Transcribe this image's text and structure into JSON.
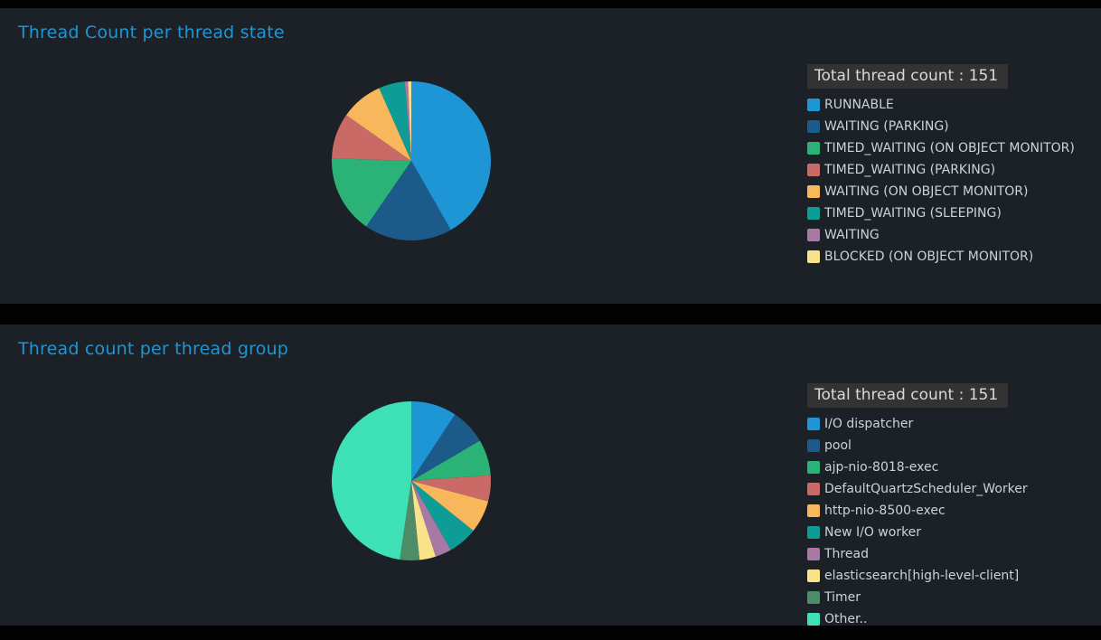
{
  "page": {
    "background": "#020202",
    "panel_background": "#1b2126",
    "title_color": "#2095d2",
    "legend_text_color": "#ccd2d7",
    "badge_background": "#333333",
    "badge_text_color": "#d8d8d8"
  },
  "panels": [
    {
      "title": "Thread Count per thread state",
      "total_label": "Total thread count : 151"
    },
    {
      "title": "Thread count per thread group",
      "total_label": "Total thread count : 151"
    }
  ],
  "chart_data": [
    {
      "type": "pie",
      "title": "Thread Count per thread state",
      "total": 151,
      "start_angle": "top",
      "direction": "clockwise",
      "legend_position": "right",
      "labels": [
        "RUNNABLE",
        "WAITING (PARKING)",
        "TIMED_WAITING (ON OBJECT MONITOR)",
        "TIMED_WAITING (PARKING)",
        "WAITING (ON OBJECT MONITOR)",
        "TIMED_WAITING (SLEEPING)",
        "WAITING",
        "BLOCKED (ON OBJECT MONITOR)"
      ],
      "values": [
        63,
        27,
        24,
        14,
        13,
        8,
        1,
        1
      ],
      "colors": [
        "#1e96d5",
        "#1c5a8a",
        "#2bb277",
        "#c96a66",
        "#f8b75b",
        "#0d9c96",
        "#a879a4",
        "#f9e28a"
      ]
    },
    {
      "type": "pie",
      "title": "Thread count per thread group",
      "total": 151,
      "start_angle": "top",
      "direction": "clockwise",
      "legend_position": "right",
      "labels": [
        "I/O dispatcher",
        "pool",
        "ajp-nio-8018-exec",
        "DefaultQuartzScheduler_Worker",
        "http-nio-8500-exec",
        "New I/O worker",
        "Thread",
        "elasticsearch[high-level-client]",
        "Timer",
        "Other.."
      ],
      "values": [
        14,
        11,
        11,
        8,
        10,
        9,
        5,
        5,
        6,
        72
      ],
      "colors": [
        "#1e96d5",
        "#1c5a8a",
        "#2bb277",
        "#c96a66",
        "#f8b75b",
        "#0d9c96",
        "#a879a4",
        "#f9e28a",
        "#4e8c67",
        "#3ee0b6"
      ]
    }
  ]
}
